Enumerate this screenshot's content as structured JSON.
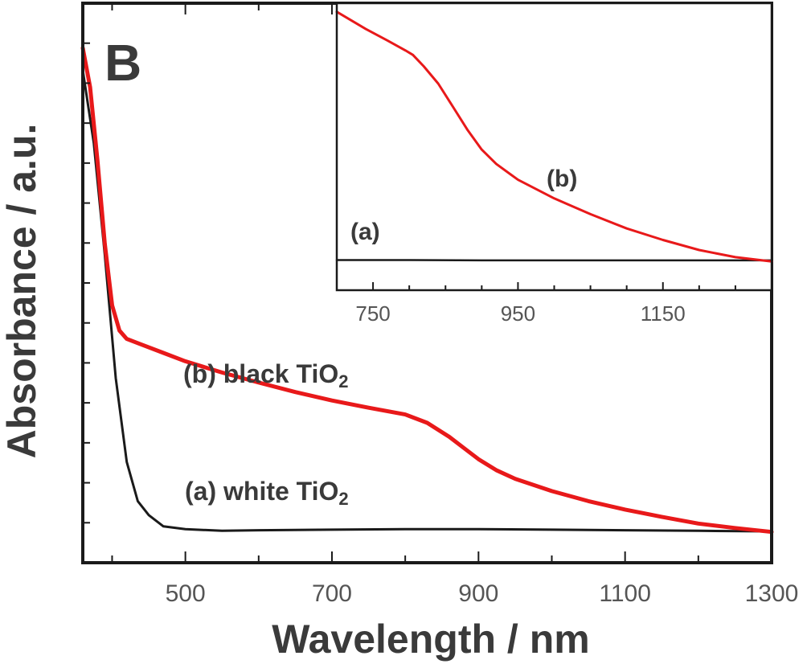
{
  "chart_data": [
    {
      "type": "line",
      "panel_label": "B",
      "xlabel": "Wavelength / nm",
      "ylabel": "Absorbance / a.u.",
      "xlim": [
        360,
        1300
      ],
      "ylim": [
        0,
        1
      ],
      "x_ticks": [
        500,
        700,
        900,
        1100,
        1300
      ],
      "grid": false,
      "series": [
        {
          "name": "(a) white TiO",
          "name_sub": "2",
          "color": "#1a1a1a",
          "points": [
            [
              360,
              0.88
            ],
            [
              375,
              0.75
            ],
            [
              390,
              0.55
            ],
            [
              405,
              0.33
            ],
            [
              420,
              0.18
            ],
            [
              435,
              0.11
            ],
            [
              450,
              0.085
            ],
            [
              470,
              0.065
            ],
            [
              500,
              0.06
            ],
            [
              550,
              0.057
            ],
            [
              600,
              0.058
            ],
            [
              700,
              0.059
            ],
            [
              800,
              0.06
            ],
            [
              900,
              0.06
            ],
            [
              1000,
              0.059
            ],
            [
              1100,
              0.058
            ],
            [
              1200,
              0.057
            ],
            [
              1300,
              0.056
            ]
          ]
        },
        {
          "name": "(b) black TiO",
          "name_sub": "2",
          "color": "#e8191a",
          "points": [
            [
              360,
              0.92
            ],
            [
              370,
              0.85
            ],
            [
              380,
              0.72
            ],
            [
              390,
              0.57
            ],
            [
              400,
              0.46
            ],
            [
              410,
              0.415
            ],
            [
              420,
              0.4
            ],
            [
              440,
              0.39
            ],
            [
              470,
              0.375
            ],
            [
              500,
              0.36
            ],
            [
              550,
              0.34
            ],
            [
              600,
              0.322
            ],
            [
              650,
              0.305
            ],
            [
              700,
              0.29
            ],
            [
              750,
              0.277
            ],
            [
              800,
              0.265
            ],
            [
              830,
              0.25
            ],
            [
              860,
              0.225
            ],
            [
              880,
              0.205
            ],
            [
              900,
              0.185
            ],
            [
              925,
              0.165
            ],
            [
              950,
              0.15
            ],
            [
              1000,
              0.128
            ],
            [
              1050,
              0.11
            ],
            [
              1100,
              0.095
            ],
            [
              1150,
              0.082
            ],
            [
              1200,
              0.07
            ],
            [
              1250,
              0.062
            ],
            [
              1300,
              0.055
            ]
          ]
        }
      ]
    },
    {
      "type": "line",
      "role": "inset",
      "xlim": [
        700,
        1300
      ],
      "ylim": [
        0,
        1
      ],
      "x_ticks": [
        750,
        950,
        1150
      ],
      "grid": false,
      "series": [
        {
          "name": "(a)",
          "color": "#1a1a1a",
          "points": [
            [
              700,
              0.105
            ],
            [
              800,
              0.105
            ],
            [
              900,
              0.104
            ],
            [
              1000,
              0.104
            ],
            [
              1100,
              0.104
            ],
            [
              1200,
              0.104
            ],
            [
              1300,
              0.104
            ]
          ]
        },
        {
          "name": "(b)",
          "color": "#e8191a",
          "points": [
            [
              700,
              0.97
            ],
            [
              740,
              0.91
            ],
            [
              770,
              0.87
            ],
            [
              795,
              0.835
            ],
            [
              805,
              0.82
            ],
            [
              820,
              0.78
            ],
            [
              840,
              0.72
            ],
            [
              860,
              0.64
            ],
            [
              880,
              0.56
            ],
            [
              900,
              0.49
            ],
            [
              920,
              0.44
            ],
            [
              950,
              0.385
            ],
            [
              1000,
              0.32
            ],
            [
              1050,
              0.265
            ],
            [
              1100,
              0.215
            ],
            [
              1150,
              0.175
            ],
            [
              1200,
              0.14
            ],
            [
              1250,
              0.115
            ],
            [
              1300,
              0.1
            ]
          ]
        }
      ]
    }
  ]
}
